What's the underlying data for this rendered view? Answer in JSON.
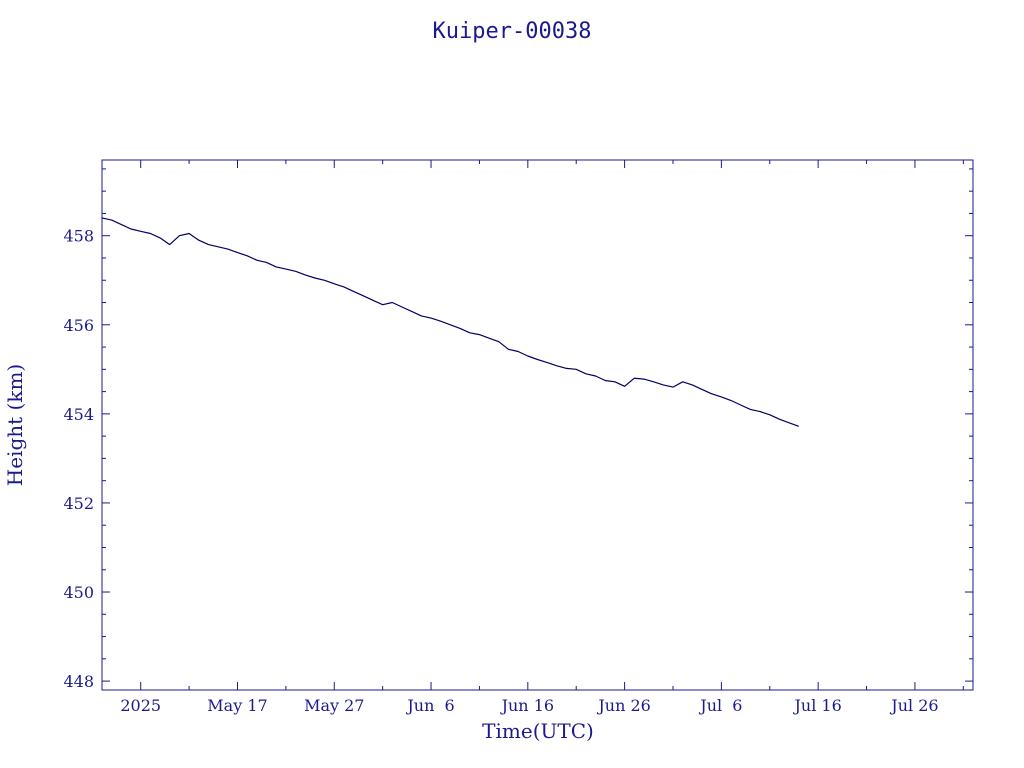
{
  "chart_data": {
    "type": "line",
    "title": "Kuiper-00038",
    "xlabel": "Time(UTC)",
    "ylabel": "Height (km)",
    "xlim": [
      "2025-05-03",
      "2025-08-01"
    ],
    "ylim": [
      447.8,
      459.7
    ],
    "x_ticks": [
      {
        "date": "2025-05-07",
        "label": "2025"
      },
      {
        "date": "2025-05-17",
        "label": "May 17"
      },
      {
        "date": "2025-05-27",
        "label": "May 27"
      },
      {
        "date": "2025-06-06",
        "label": "Jun  6"
      },
      {
        "date": "2025-06-16",
        "label": "Jun 16"
      },
      {
        "date": "2025-06-26",
        "label": "Jun 26"
      },
      {
        "date": "2025-07-06",
        "label": "Jul  6"
      },
      {
        "date": "2025-07-16",
        "label": "Jul 16"
      },
      {
        "date": "2025-07-26",
        "label": "Jul 26"
      }
    ],
    "y_ticks": [
      448,
      450,
      452,
      454,
      456,
      458
    ],
    "colors": {
      "axis": "#1a1a8c",
      "line": "#000066"
    },
    "series": [
      {
        "points": [
          [
            "2025-05-03",
            458.4
          ],
          [
            "2025-05-04",
            458.35
          ],
          [
            "2025-05-05",
            458.25
          ],
          [
            "2025-05-06",
            458.15
          ],
          [
            "2025-05-07",
            458.1
          ],
          [
            "2025-05-08",
            458.05
          ],
          [
            "2025-05-09",
            457.95
          ],
          [
            "2025-05-10",
            457.8
          ],
          [
            "2025-05-11",
            458.0
          ],
          [
            "2025-05-12",
            458.05
          ],
          [
            "2025-05-13",
            457.9
          ],
          [
            "2025-05-14",
            457.8
          ],
          [
            "2025-05-15",
            457.75
          ],
          [
            "2025-05-16",
            457.7
          ],
          [
            "2025-05-17",
            457.62
          ],
          [
            "2025-05-18",
            457.55
          ],
          [
            "2025-05-19",
            457.45
          ],
          [
            "2025-05-20",
            457.4
          ],
          [
            "2025-05-21",
            457.3
          ],
          [
            "2025-05-22",
            457.25
          ],
          [
            "2025-05-23",
            457.2
          ],
          [
            "2025-05-24",
            457.12
          ],
          [
            "2025-05-25",
            457.05
          ],
          [
            "2025-05-26",
            457.0
          ],
          [
            "2025-05-27",
            456.92
          ],
          [
            "2025-05-28",
            456.85
          ],
          [
            "2025-05-29",
            456.75
          ],
          [
            "2025-05-30",
            456.65
          ],
          [
            "2025-05-31",
            456.55
          ],
          [
            "2025-06-01",
            456.45
          ],
          [
            "2025-06-02",
            456.5
          ],
          [
            "2025-06-03",
            456.4
          ],
          [
            "2025-06-04",
            456.3
          ],
          [
            "2025-06-05",
            456.2
          ],
          [
            "2025-06-06",
            456.15
          ],
          [
            "2025-06-07",
            456.08
          ],
          [
            "2025-06-08",
            456.0
          ],
          [
            "2025-06-09",
            455.92
          ],
          [
            "2025-06-10",
            455.82
          ],
          [
            "2025-06-11",
            455.78
          ],
          [
            "2025-06-12",
            455.7
          ],
          [
            "2025-06-13",
            455.62
          ],
          [
            "2025-06-14",
            455.45
          ],
          [
            "2025-06-15",
            455.4
          ],
          [
            "2025-06-16",
            455.3
          ],
          [
            "2025-06-17",
            455.22
          ],
          [
            "2025-06-18",
            455.15
          ],
          [
            "2025-06-19",
            455.08
          ],
          [
            "2025-06-20",
            455.02
          ],
          [
            "2025-06-21",
            455.0
          ],
          [
            "2025-06-22",
            454.9
          ],
          [
            "2025-06-23",
            454.85
          ],
          [
            "2025-06-24",
            454.75
          ],
          [
            "2025-06-25",
            454.72
          ],
          [
            "2025-06-26",
            454.62
          ],
          [
            "2025-06-27",
            454.8
          ],
          [
            "2025-06-28",
            454.78
          ],
          [
            "2025-06-29",
            454.72
          ],
          [
            "2025-06-30",
            454.65
          ],
          [
            "2025-07-01",
            454.6
          ],
          [
            "2025-07-02",
            454.72
          ],
          [
            "2025-07-03",
            454.65
          ],
          [
            "2025-07-04",
            454.55
          ],
          [
            "2025-07-05",
            454.45
          ],
          [
            "2025-07-06",
            454.38
          ],
          [
            "2025-07-07",
            454.3
          ],
          [
            "2025-07-08",
            454.2
          ],
          [
            "2025-07-09",
            454.1
          ],
          [
            "2025-07-10",
            454.05
          ],
          [
            "2025-07-11",
            453.98
          ],
          [
            "2025-07-12",
            453.88
          ],
          [
            "2025-07-13",
            453.8
          ],
          [
            "2025-07-14",
            453.72
          ]
        ]
      }
    ]
  }
}
